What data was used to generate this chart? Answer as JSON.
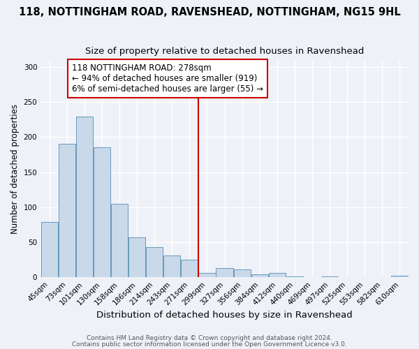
{
  "title": "118, NOTTINGHAM ROAD, RAVENSHEAD, NOTTINGHAM, NG15 9HL",
  "subtitle": "Size of property relative to detached houses in Ravenshead",
  "xlabel": "Distribution of detached houses by size in Ravenshead",
  "ylabel": "Number of detached properties",
  "bar_labels": [
    "45sqm",
    "73sqm",
    "101sqm",
    "130sqm",
    "158sqm",
    "186sqm",
    "214sqm",
    "243sqm",
    "271sqm",
    "299sqm",
    "327sqm",
    "356sqm",
    "384sqm",
    "412sqm",
    "440sqm",
    "469sqm",
    "497sqm",
    "525sqm",
    "553sqm",
    "582sqm",
    "610sqm"
  ],
  "bar_values": [
    79,
    190,
    229,
    185,
    105,
    57,
    43,
    31,
    25,
    6,
    13,
    11,
    4,
    6,
    1,
    0,
    1,
    0,
    0,
    0,
    2
  ],
  "bar_color": "#c9d9ea",
  "bar_edge_color": "#6699bb",
  "vline_color": "#cc0000",
  "annotation_text": "118 NOTTINGHAM ROAD: 278sqm\n← 94% of detached houses are smaller (919)\n6% of semi-detached houses are larger (55) →",
  "annotation_box_color": "#ffffff",
  "annotation_box_edge": "#cc0000",
  "ylim": [
    0,
    310
  ],
  "background_color": "#eef2f8",
  "grid_color": "#ffffff",
  "footer_line1": "Contains HM Land Registry data © Crown copyright and database right 2024.",
  "footer_line2": "Contains public sector information licensed under the Open Government Licence v3.0.",
  "title_fontsize": 10.5,
  "subtitle_fontsize": 9.5,
  "xlabel_fontsize": 9.5,
  "ylabel_fontsize": 8.5,
  "tick_fontsize": 7.5,
  "annotation_fontsize": 8.5,
  "footer_fontsize": 6.5
}
